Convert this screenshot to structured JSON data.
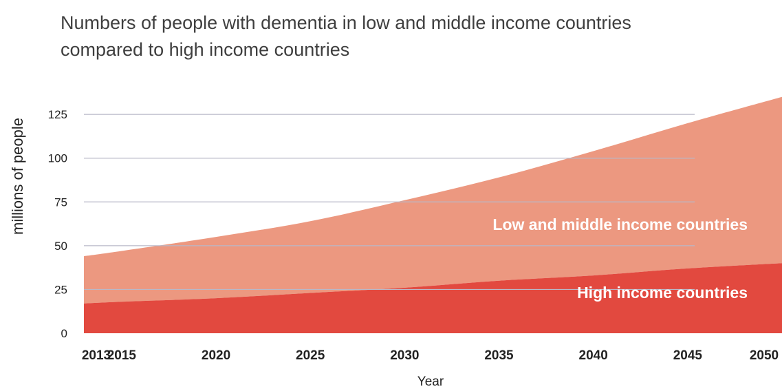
{
  "chart_data": {
    "type": "area",
    "title": "Numbers of people with dementia in low and middle income countries",
    "subtitle": "compared to high income countries",
    "xlabel": "Year",
    "ylabel": "millions of people",
    "x": [
      2013,
      2015,
      2020,
      2025,
      2030,
      2035,
      2040,
      2045,
      2050
    ],
    "x_tick_labels": [
      "2013",
      "2015",
      "2020",
      "2025",
      "2030",
      "2035",
      "2040",
      "2045",
      "2050"
    ],
    "y_ticks": [
      0,
      25,
      50,
      75,
      100,
      125
    ],
    "y_tick_labels": [
      "0",
      "25",
      "50",
      "75",
      "100",
      "125"
    ],
    "xlim": [
      2013,
      2050
    ],
    "ylim": [
      0,
      140
    ],
    "stacked": true,
    "grid": true,
    "legend": "inline labels inside areas",
    "series": [
      {
        "name": "High income countries",
        "values": [
          17,
          18,
          20,
          23,
          26,
          30,
          33,
          37,
          40
        ],
        "color": "#e2493f"
      },
      {
        "name": "Low and middle income countries",
        "values": [
          27,
          29,
          35,
          41,
          50,
          59,
          71,
          83,
          95
        ],
        "color": "#ec9880"
      }
    ]
  }
}
